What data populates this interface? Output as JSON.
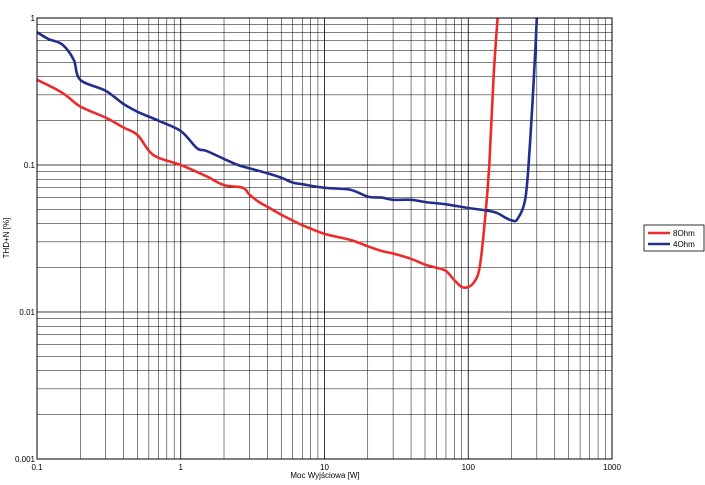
{
  "chart_data": {
    "type": "line",
    "title": "",
    "xlabel": "Moc Wyjściowa [W]",
    "ylabel": "THD+N [%]",
    "xscale": "log",
    "yscale": "log",
    "xlim": [
      0.1,
      1000
    ],
    "ylim": [
      0.001,
      1
    ],
    "grid": true,
    "legend_position": "right",
    "x_ticks": [
      "0.1",
      "1",
      "10",
      "100",
      "1000"
    ],
    "y_ticks": [
      "0.001",
      "0.01",
      "0.1",
      "1"
    ],
    "series": [
      {
        "name": "8Ohm",
        "color": "#ee2b2b",
        "x": [
          0.1,
          0.15,
          0.2,
          0.3,
          0.4,
          0.5,
          0.6,
          0.7,
          1,
          1.5,
          2,
          2.7,
          3,
          3.5,
          4,
          5,
          7,
          10,
          15,
          20,
          25,
          30,
          40,
          50,
          60,
          70,
          80,
          90,
          100,
          110,
          120,
          130,
          140,
          150,
          160
        ],
        "y": [
          0.38,
          0.31,
          0.25,
          0.21,
          0.18,
          0.16,
          0.125,
          0.112,
          0.1,
          0.084,
          0.073,
          0.07,
          0.063,
          0.056,
          0.052,
          0.046,
          0.039,
          0.034,
          0.031,
          0.028,
          0.026,
          0.025,
          0.023,
          0.021,
          0.02,
          0.019,
          0.0165,
          0.0148,
          0.0148,
          0.016,
          0.02,
          0.04,
          0.1,
          0.4,
          1.0
        ]
      },
      {
        "name": "4Ohm",
        "color": "#232e8c",
        "x": [
          0.1,
          0.12,
          0.15,
          0.18,
          0.2,
          0.3,
          0.4,
          0.5,
          0.7,
          1,
          1.3,
          1.5,
          2,
          2.5,
          3,
          4,
          5,
          6,
          7,
          10,
          15,
          20,
          25,
          30,
          40,
          50,
          70,
          100,
          150,
          180,
          200,
          220,
          250,
          270,
          290,
          300
        ],
        "y": [
          0.8,
          0.72,
          0.66,
          0.52,
          0.38,
          0.32,
          0.26,
          0.23,
          0.2,
          0.17,
          0.13,
          0.125,
          0.11,
          0.1,
          0.095,
          0.088,
          0.082,
          0.076,
          0.074,
          0.07,
          0.068,
          0.061,
          0.06,
          0.058,
          0.058,
          0.056,
          0.054,
          0.051,
          0.048,
          0.044,
          0.042,
          0.043,
          0.06,
          0.15,
          0.5,
          1.0
        ]
      }
    ]
  }
}
